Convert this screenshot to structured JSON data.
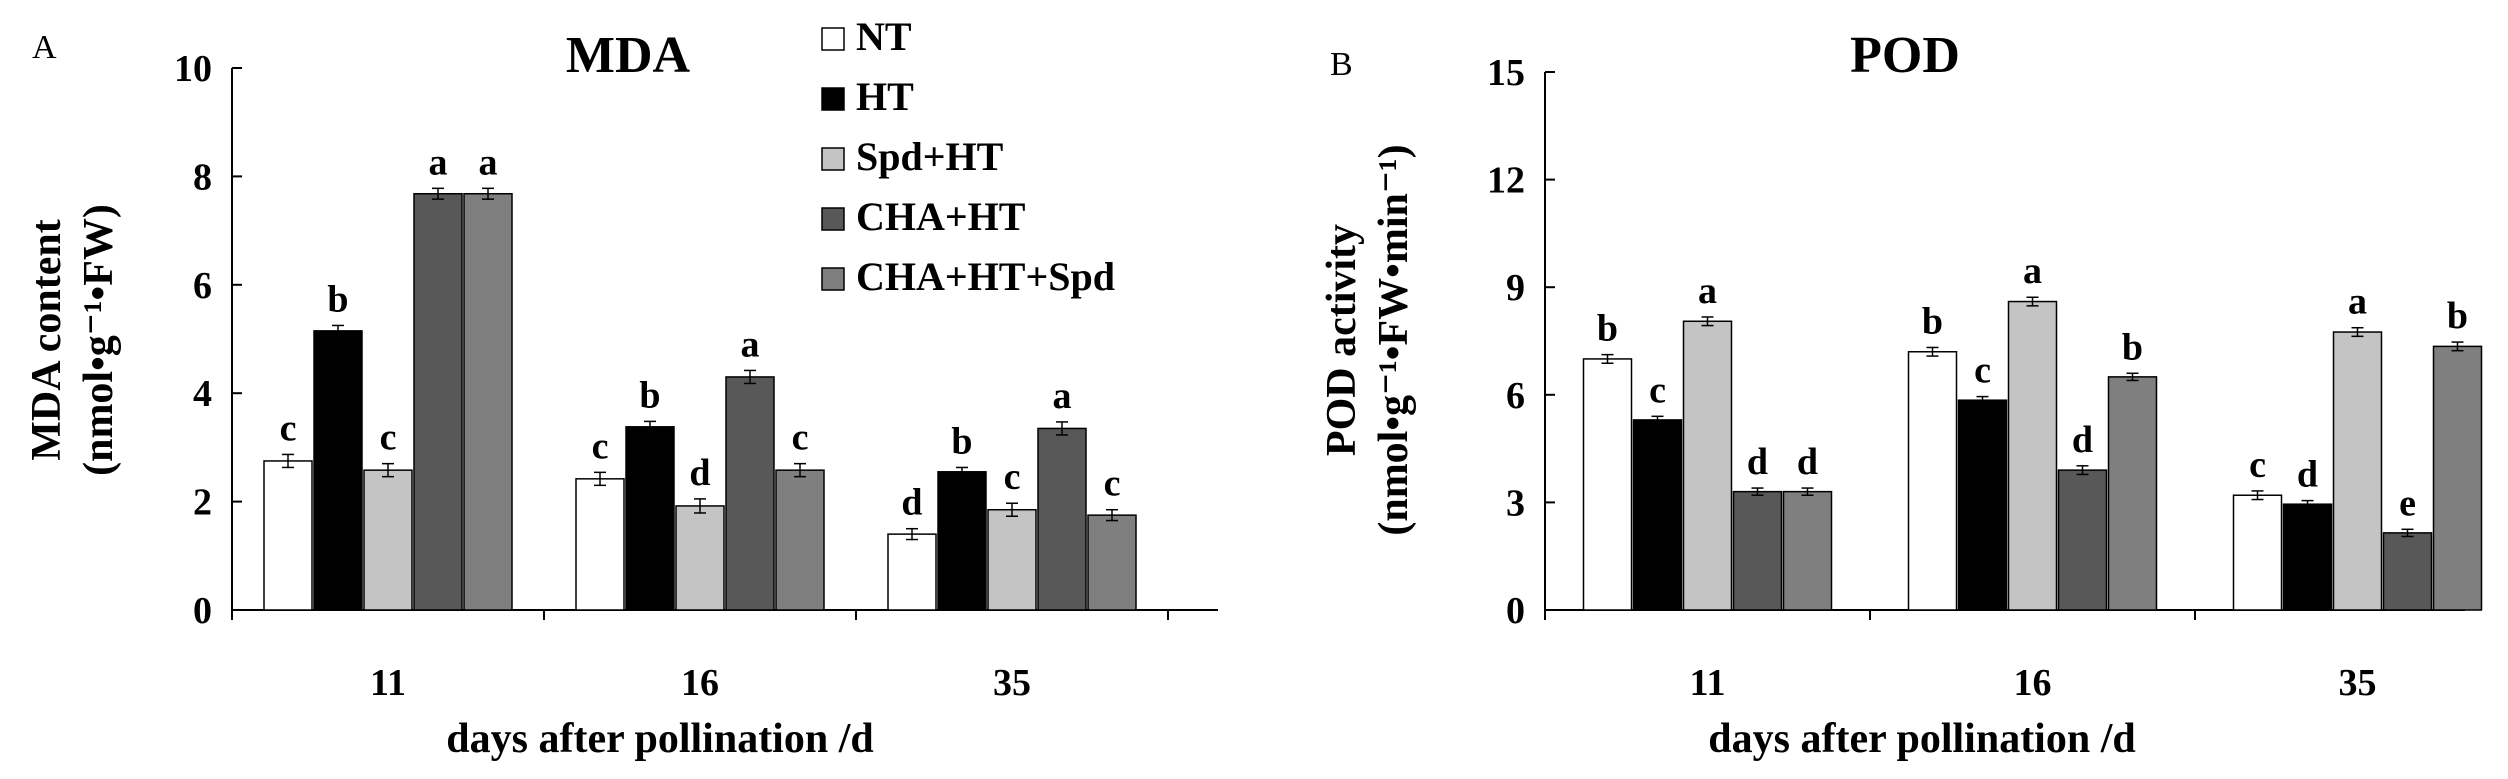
{
  "figure": {
    "colors": {
      "NT": "#ffffff",
      "HT": "#000000",
      "Spd+HT": "#c4c4c4",
      "CHA+HT": "#585858",
      "CHA+HT+Spd": "#7f7f7f"
    },
    "legend_placement": "top-center (within panel A)"
  },
  "chart_data": [
    {
      "type": "bar",
      "panel": "A",
      "title": "MDA",
      "xlabel": "days after pollination  /d",
      "ylabel_line1": "MDA content",
      "ylabel_line2": "(nmol•g⁻¹•FW)",
      "categories": [
        "11",
        "16",
        "35"
      ],
      "ylim": [
        0,
        10
      ],
      "yticks": [
        0,
        2,
        4,
        6,
        8,
        10
      ],
      "grid": false,
      "series": [
        {
          "name": "NT",
          "values": [
            2.75,
            2.42,
            1.4
          ],
          "labels": [
            "c",
            "c",
            "d"
          ],
          "errors": [
            0.12,
            0.12,
            0.1
          ]
        },
        {
          "name": "HT",
          "values": [
            5.15,
            3.38,
            2.55
          ],
          "labels": [
            "b",
            "b",
            "b"
          ],
          "errors": [
            0.1,
            0.1,
            0.08
          ]
        },
        {
          "name": "Spd+HT",
          "values": [
            2.58,
            1.92,
            1.85
          ],
          "labels": [
            "c",
            "d",
            "c"
          ],
          "errors": [
            0.12,
            0.13,
            0.12
          ]
        },
        {
          "name": "CHA+HT",
          "values": [
            7.68,
            4.3,
            3.35
          ],
          "labels": [
            "a",
            "a",
            "a"
          ],
          "errors": [
            0.1,
            0.12,
            0.12
          ]
        },
        {
          "name": "CHA+HT+Spd",
          "values": [
            7.68,
            2.58,
            1.75
          ],
          "labels": [
            "a",
            "c",
            "c"
          ],
          "errors": [
            0.1,
            0.12,
            0.1
          ]
        }
      ]
    },
    {
      "type": "bar",
      "panel": "B",
      "title": "POD",
      "xlabel": "days after pollination /d",
      "ylabel_line1": "POD activity",
      "ylabel_line2": "(nmol•g⁻¹•FW•min⁻¹)",
      "categories": [
        "11",
        "16",
        "35"
      ],
      "ylim": [
        0,
        15
      ],
      "yticks": [
        0,
        3,
        6,
        9,
        12,
        15
      ],
      "grid": false,
      "series": [
        {
          "name": "NT",
          "values": [
            7.0,
            7.2,
            3.2
          ],
          "labels": [
            "b",
            "b",
            "c"
          ],
          "errors": [
            0.12,
            0.12,
            0.12
          ]
        },
        {
          "name": "HT",
          "values": [
            5.3,
            5.85,
            2.95
          ],
          "labels": [
            "c",
            "c",
            "d"
          ],
          "errors": [
            0.1,
            0.1,
            0.1
          ]
        },
        {
          "name": "Spd+HT",
          "values": [
            8.05,
            8.6,
            7.75
          ],
          "labels": [
            "a",
            "a",
            "a"
          ],
          "errors": [
            0.12,
            0.12,
            0.12
          ]
        },
        {
          "name": "CHA+HT",
          "values": [
            3.3,
            3.9,
            2.15
          ],
          "labels": [
            "d",
            "d",
            "e"
          ],
          "errors": [
            0.1,
            0.12,
            0.1
          ]
        },
        {
          "name": "CHA+HT+Spd",
          "values": [
            3.3,
            6.5,
            7.35
          ],
          "labels": [
            "d",
            "b",
            "b"
          ],
          "errors": [
            0.1,
            0.1,
            0.12
          ]
        }
      ]
    }
  ]
}
